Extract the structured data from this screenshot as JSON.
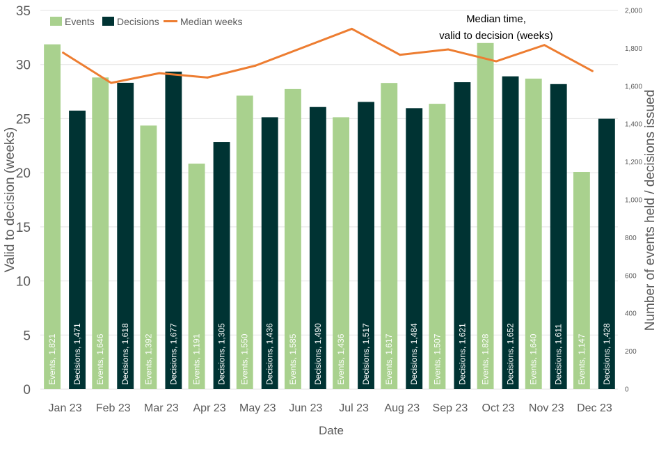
{
  "chart_data": {
    "type": "bar",
    "title": "Median time, valid to decision (weeks)",
    "title_lines": [
      "Median time,",
      "valid to decision (weeks)"
    ],
    "xlabel": "Date",
    "ylabel_left": "Valid to decision (weeks)",
    "ylabel_right": "Number of events held / decisions issued",
    "categories": [
      "Jan 23",
      "Feb 23",
      "Mar 23",
      "Apr 23",
      "May 23",
      "Jun 23",
      "Jul 23",
      "Aug 23",
      "Sep 23",
      "Oct 23",
      "Nov 23",
      "Dec 23"
    ],
    "ylim_left": [
      0,
      35
    ],
    "yticks_left": [
      0,
      5,
      10,
      15,
      20,
      25,
      30,
      35
    ],
    "ylim_right": [
      0,
      2000
    ],
    "yticks_right": [
      0,
      200,
      400,
      600,
      800,
      1000,
      1200,
      1400,
      1600,
      1800,
      2000
    ],
    "yticks_right_labels": [
      "0",
      "200",
      "400",
      "600",
      "800",
      "1,000",
      "1,200",
      "1,400",
      "1,600",
      "1,800",
      "2,000"
    ],
    "legend_position": "top-left",
    "series": [
      {
        "name": "Events",
        "kind": "bar",
        "axis": "right",
        "color": "#a9d18e",
        "values": [
          1821,
          1646,
          1392,
          1191,
          1550,
          1585,
          1436,
          1617,
          1507,
          1828,
          1640,
          1147
        ],
        "labels": [
          "Events, 1,821",
          "Events, 1,646",
          "Events, 1,392",
          "Events, 1,191",
          "Events, 1,550",
          "Events, 1,585",
          "Events, 1,436",
          "Events, 1,617",
          "Events, 1,507",
          "Events, 1,828",
          "Events, 1,640",
          "Events, 1,147"
        ]
      },
      {
        "name": "Decisions",
        "kind": "bar",
        "axis": "right",
        "color": "#003333",
        "values": [
          1471,
          1618,
          1677,
          1305,
          1436,
          1490,
          1517,
          1484,
          1621,
          1652,
          1611,
          1428
        ],
        "labels": [
          "Decisions, 1,471",
          "Decisions, 1,618",
          "Decisions, 1,677",
          "Decisions, 1,305",
          "Decisions, 1,436",
          "Decisions, 1,490",
          "Decisions, 1,517",
          "Decisions, 1,484",
          "Decisions, 1,621",
          "Decisions, 1,652",
          "Decisions, 1,611",
          "Decisions, 1,428"
        ]
      },
      {
        "name": "Median weeks",
        "kind": "line",
        "axis": "left",
        "color": "#ed7d31",
        "values": [
          31.1,
          28.3,
          29.2,
          28.8,
          29.9,
          31.6,
          33.3,
          30.9,
          31.4,
          30.3,
          31.8,
          29.4
        ]
      }
    ]
  },
  "colors": {
    "grid": "#e3e3e3",
    "axis_text": "#595959",
    "label_text": "#ffffff",
    "title_text": "#000000"
  }
}
